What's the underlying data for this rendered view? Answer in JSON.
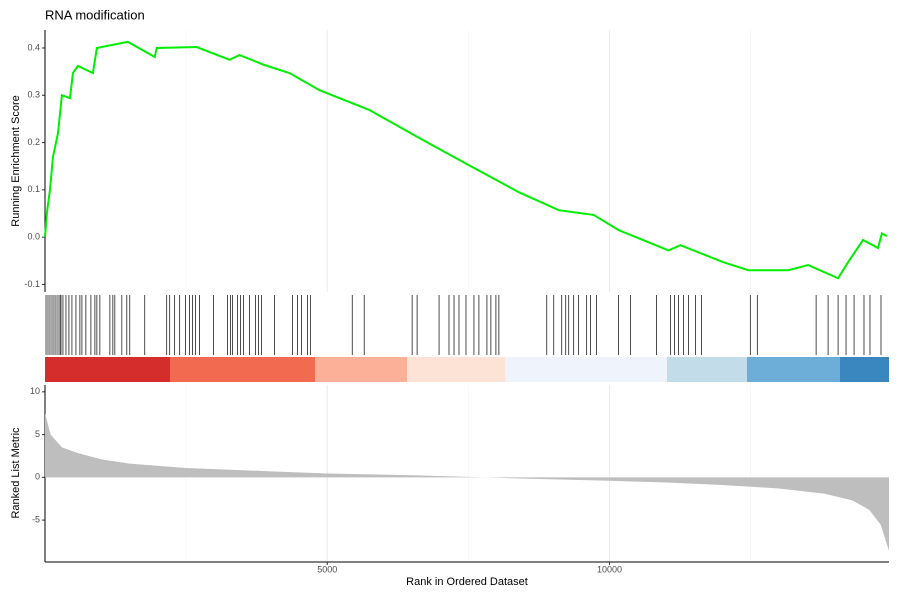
{
  "chart_data": [
    {
      "type": "line",
      "title": "RNA modification",
      "ylabel": "Running Enrichment Score",
      "color": "#00ee00",
      "x": [
        0,
        35,
        88,
        141,
        230,
        300,
        442,
        495,
        583,
        848,
        919,
        1467,
        1944,
        1979,
        2686,
        3269,
        3446,
        3887,
        4329,
        4859,
        5743,
        6626,
        7510,
        8393,
        9100,
        9719,
        10160,
        11044,
        11256,
        12016,
        12458,
        13165,
        13518,
        14048,
        14225,
        14490,
        14755,
        14825,
        14914
      ],
      "values": [
        0.0,
        0.053,
        0.1,
        0.17,
        0.22,
        0.3,
        0.294,
        0.347,
        0.362,
        0.347,
        0.4,
        0.413,
        0.381,
        0.4,
        0.402,
        0.375,
        0.385,
        0.364,
        0.347,
        0.311,
        0.269,
        0.21,
        0.152,
        0.095,
        0.057,
        0.047,
        0.015,
        -0.028,
        -0.017,
        -0.053,
        -0.07,
        -0.07,
        -0.059,
        -0.087,
        -0.053,
        -0.006,
        -0.023,
        0.008,
        0.002
      ],
      "xlim": [
        0,
        14950
      ],
      "ylim": [
        -0.116,
        0.438
      ],
      "yticks": [
        -0.1,
        {
          "value": 0,
          "label": "0.0"
        },
        0.1,
        0.2,
        0.3,
        0.4
      ]
    },
    {
      "type": "rug",
      "color": "#000000",
      "xlim": [
        0,
        14950
      ],
      "x": [
        18,
        53,
        88,
        124,
        159,
        194,
        230,
        265,
        283,
        318,
        371,
        424,
        477,
        548,
        618,
        654,
        724,
        813,
        884,
        919,
        972,
        1149,
        1202,
        1237,
        1361,
        1449,
        1502,
        1767,
        2156,
        2209,
        2297,
        2386,
        2491,
        2562,
        2615,
        2668,
        2739,
        2986,
        3234,
        3287,
        3322,
        3410,
        3463,
        3516,
        3622,
        3728,
        3781,
        3834,
        4064,
        4382,
        4471,
        4541,
        4647,
        4700,
        5442,
        5654,
        6503,
        6591,
        6980,
        7156,
        7245,
        7333,
        7457,
        7598,
        7686,
        7828,
        7898,
        7987,
        8040,
        8888,
        9012,
        9153,
        9224,
        9277,
        9365,
        9453,
        9595,
        9665,
        9771,
        10160,
        10372,
        10832,
        11079,
        11150,
        11221,
        11309,
        11397,
        11521,
        11627,
        12493,
        12617,
        13659,
        13871,
        14048,
        14189,
        14331,
        14507,
        14613,
        14808
      ]
    },
    {
      "type": "area",
      "ylabel": "Ranked List Metric",
      "xlabel": "Rank in Ordered Dataset",
      "color": "#bebebe",
      "x": [
        0,
        100,
        300,
        600,
        1000,
        1500,
        2500,
        4000,
        5000,
        6500,
        7500,
        8500,
        10000,
        11000,
        12000,
        13000,
        13800,
        14300,
        14600,
        14800,
        14950
      ],
      "values": [
        7.5,
        5,
        3.5,
        2.8,
        2.1,
        1.6,
        1.1,
        0.7,
        0.45,
        0.25,
        0.05,
        -0.15,
        -0.4,
        -0.6,
        -0.9,
        -1.3,
        -1.9,
        -2.7,
        -3.8,
        -5.5,
        -8.6
      ],
      "xlim": [
        0,
        14950
      ],
      "ylim": [
        -9.9,
        10.8
      ],
      "yticks": [
        -5,
        0,
        5,
        10
      ],
      "xticks": [
        5000,
        10000
      ],
      "minor_xgrid": [
        2500,
        7500,
        12500
      ]
    }
  ]
}
